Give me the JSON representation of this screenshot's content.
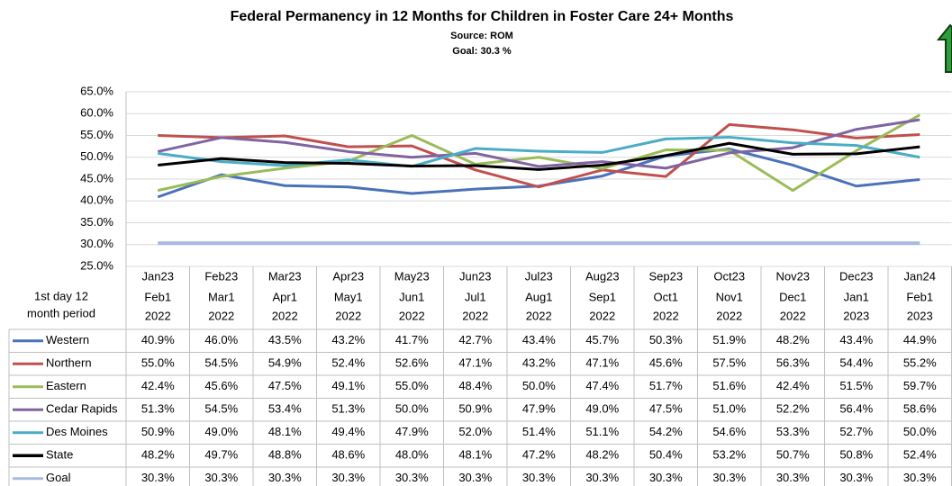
{
  "chart_data": {
    "type": "line",
    "title": "Federal Permanency in 12 Months for Children in Foster Care 24+ Months",
    "subtitle": [
      "Source: ROM",
      "Goal: 30.3 %"
    ],
    "table_header": [
      "1st day 12",
      "month period"
    ],
    "categories": [
      "Jan23",
      "Feb23",
      "Mar23",
      "Apr23",
      "May23",
      "Jun23",
      "Jul23",
      "Aug23",
      "Sep23",
      "Oct23",
      "Nov23",
      "Dec23",
      "Jan24"
    ],
    "period_start": [
      "Feb1",
      "Mar1",
      "Apr1",
      "May1",
      "Jun1",
      "Jul1",
      "Aug1",
      "Sep1",
      "Oct1",
      "Nov1",
      "Dec1",
      "Jan1",
      "Feb1"
    ],
    "period_year": [
      "2022",
      "2022",
      "2022",
      "2022",
      "2022",
      "2022",
      "2022",
      "2022",
      "2022",
      "2022",
      "2022",
      "2023",
      "2023"
    ],
    "ylim": [
      25,
      65
    ],
    "yticks": [
      {
        "value": 25,
        "label": "25.0%"
      },
      {
        "value": 30,
        "label": "30.0%"
      },
      {
        "value": 35,
        "label": "35.0%"
      },
      {
        "value": 40,
        "label": "40.0%"
      },
      {
        "value": 45,
        "label": "45.0%"
      },
      {
        "value": 50,
        "label": "50.0%"
      },
      {
        "value": 55,
        "label": "55.0%"
      },
      {
        "value": 60,
        "label": "60.0%"
      },
      {
        "value": 65,
        "label": "65.0%"
      }
    ],
    "grid": true,
    "series": [
      {
        "name": "Western",
        "color": "#4a72b8",
        "values": [
          40.9,
          46.0,
          43.5,
          43.2,
          41.7,
          42.7,
          43.4,
          45.7,
          50.3,
          51.9,
          48.2,
          43.4,
          44.9
        ],
        "value_labels": [
          "40.9%",
          "46.0%",
          "43.5%",
          "43.2%",
          "41.7%",
          "42.7%",
          "43.4%",
          "45.7%",
          "50.3%",
          "51.9%",
          "48.2%",
          "43.4%",
          "44.9%"
        ]
      },
      {
        "name": "Northern",
        "color": "#c0504d",
        "values": [
          55.0,
          54.5,
          54.9,
          52.4,
          52.6,
          47.1,
          43.2,
          47.1,
          45.6,
          57.5,
          56.3,
          54.4,
          55.2
        ],
        "value_labels": [
          "55.0%",
          "54.5%",
          "54.9%",
          "52.4%",
          "52.6%",
          "47.1%",
          "43.2%",
          "47.1%",
          "45.6%",
          "57.5%",
          "56.3%",
          "54.4%",
          "55.2%"
        ]
      },
      {
        "name": "Eastern",
        "color": "#9bbb59",
        "values": [
          42.4,
          45.6,
          47.5,
          49.1,
          55.0,
          48.4,
          50.0,
          47.4,
          51.7,
          51.6,
          42.4,
          51.5,
          59.7
        ],
        "value_labels": [
          "42.4%",
          "45.6%",
          "47.5%",
          "49.1%",
          "55.0%",
          "48.4%",
          "50.0%",
          "47.4%",
          "51.7%",
          "51.6%",
          "42.4%",
          "51.5%",
          "59.7%"
        ]
      },
      {
        "name": "Cedar Rapids",
        "color": "#8064a2",
        "values": [
          51.3,
          54.5,
          53.4,
          51.3,
          50.0,
          50.9,
          47.9,
          49.0,
          47.5,
          51.0,
          52.2,
          56.4,
          58.6
        ],
        "value_labels": [
          "51.3%",
          "54.5%",
          "53.4%",
          "51.3%",
          "50.0%",
          "50.9%",
          "47.9%",
          "49.0%",
          "47.5%",
          "51.0%",
          "52.2%",
          "56.4%",
          "58.6%"
        ]
      },
      {
        "name": "Des Moines",
        "color": "#4bacc6",
        "values": [
          50.9,
          49.0,
          48.1,
          49.4,
          47.9,
          52.0,
          51.4,
          51.1,
          54.2,
          54.6,
          53.3,
          52.7,
          50.0
        ],
        "value_labels": [
          "50.9%",
          "49.0%",
          "48.1%",
          "49.4%",
          "47.9%",
          "52.0%",
          "51.4%",
          "51.1%",
          "54.2%",
          "54.6%",
          "53.3%",
          "52.7%",
          "50.0%"
        ]
      },
      {
        "name": "State",
        "color": "#000000",
        "values": [
          48.2,
          49.7,
          48.8,
          48.6,
          48.0,
          48.1,
          47.2,
          48.2,
          50.4,
          53.2,
          50.7,
          50.8,
          52.4
        ],
        "value_labels": [
          "48.2%",
          "49.7%",
          "48.8%",
          "48.6%",
          "48.0%",
          "48.1%",
          "47.2%",
          "48.2%",
          "50.4%",
          "53.2%",
          "50.7%",
          "50.8%",
          "52.4%"
        ]
      },
      {
        "name": "Goal",
        "color": "#a7badf",
        "values": [
          30.3,
          30.3,
          30.3,
          30.3,
          30.3,
          30.3,
          30.3,
          30.3,
          30.3,
          30.3,
          30.3,
          30.3,
          30.3
        ],
        "value_labels": [
          "30.3%",
          "30.3%",
          "30.3%",
          "30.3%",
          "30.3%",
          "30.3%",
          "30.3%",
          "30.3%",
          "30.3%",
          "30.3%",
          "30.3%",
          "30.3%",
          "30.3%"
        ]
      }
    ]
  }
}
